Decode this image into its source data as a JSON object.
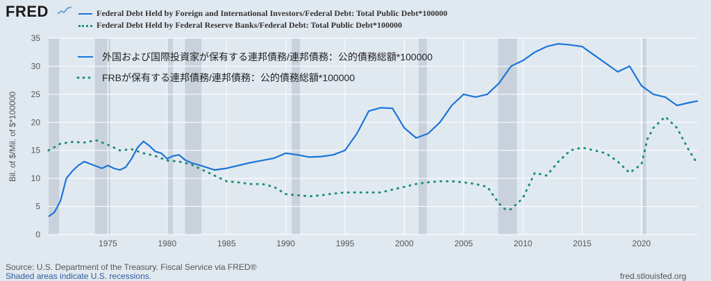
{
  "header": {
    "logo": "FRED",
    "legend": [
      {
        "label": "Federal Debt Held by Foreign and International Investors/Federal Debt: Total Public Debt*100000",
        "style": "solid"
      },
      {
        "label": "Federal Debt Held by Federal Reserve Banks/Federal Debt: Total Public Debt*100000",
        "style": "dotted"
      }
    ]
  },
  "chart_data": {
    "type": "line",
    "ylabel": "Bil. of $/Mil. of $*100000",
    "ylim": [
      0,
      35
    ],
    "xlim": [
      1970,
      2024.75
    ],
    "yticks": [
      0,
      5,
      10,
      15,
      20,
      25,
      30,
      35
    ],
    "xticks": [
      1975,
      1980,
      1985,
      1990,
      1995,
      2000,
      2005,
      2010,
      2015,
      2020
    ],
    "grid": true,
    "colors": {
      "foreign": "#1a74d8",
      "fed": "#1f8f76",
      "recession": "#c9d2dc"
    },
    "inner_legend": [
      {
        "label": "外国および国際投資家が保有する連邦債務/連邦債務：公的債務総額*100000",
        "style": "solid"
      },
      {
        "label": "FRBが保有する連邦債務/連邦債務：公的債務総額*100000",
        "style": "dotted"
      }
    ],
    "recessions": [
      [
        1970,
        1970.9
      ],
      [
        1973.9,
        1975.2
      ],
      [
        1980,
        1980.5
      ],
      [
        1981.5,
        1982.9
      ],
      [
        1990.5,
        1991.2
      ],
      [
        2001.2,
        2001.9
      ],
      [
        2007.9,
        2009.5
      ],
      [
        2020.1,
        2020.4
      ]
    ],
    "series": [
      {
        "name": "foreign",
        "style": "solid",
        "x": [
          1970,
          1970.5,
          1971,
          1971.5,
          1972,
          1972.5,
          1973,
          1973.5,
          1974,
          1974.5,
          1975,
          1975.5,
          1976,
          1976.5,
          1977,
          1977.5,
          1978,
          1978.5,
          1979,
          1979.5,
          1980,
          1980.5,
          1981,
          1981.5,
          1982,
          1983,
          1984,
          1985,
          1986,
          1987,
          1988,
          1989,
          1990,
          1991,
          1992,
          1993,
          1994,
          1995,
          1996,
          1997,
          1998,
          1999,
          2000,
          2001,
          2002,
          2003,
          2004,
          2005,
          2006,
          2007,
          2008,
          2009,
          2010,
          2011,
          2012,
          2013,
          2014,
          2015,
          2016,
          2017,
          2018,
          2019,
          2020,
          2021,
          2022,
          2023,
          2024,
          2024.75
        ],
        "values": [
          3.2,
          4.0,
          6.0,
          10.0,
          11.3,
          12.3,
          13.0,
          12.6,
          12.2,
          11.8,
          12.3,
          11.8,
          11.5,
          12.0,
          13.5,
          15.5,
          16.6,
          15.8,
          14.8,
          14.5,
          13.5,
          14.0,
          14.2,
          13.3,
          12.8,
          12.2,
          11.5,
          11.8,
          12.3,
          12.8,
          13.2,
          13.6,
          14.5,
          14.2,
          13.8,
          13.9,
          14.2,
          15.0,
          18.0,
          22.0,
          22.6,
          22.5,
          19.0,
          17.2,
          18.0,
          20.0,
          23.0,
          25.0,
          24.5,
          25.0,
          27.0,
          30.0,
          31.0,
          32.5,
          33.5,
          34.0,
          33.8,
          33.5,
          32.0,
          30.5,
          29.0,
          30.0,
          26.5,
          25.0,
          24.5,
          23.0,
          23.5,
          23.8
        ]
      },
      {
        "name": "fed",
        "style": "dotted",
        "x": [
          1970,
          1971,
          1972,
          1973,
          1974,
          1975,
          1976,
          1977,
          1978,
          1979,
          1980,
          1981,
          1982,
          1983,
          1984,
          1985,
          1986,
          1987,
          1988,
          1989,
          1990,
          1991,
          1992,
          1993,
          1994,
          1995,
          1996,
          1997,
          1998,
          1999,
          2000,
          2001,
          2002,
          2003,
          2004,
          2005,
          2006,
          2007,
          2008,
          2008.5,
          2009,
          2010,
          2011,
          2012,
          2013,
          2014,
          2015,
          2016,
          2017,
          2018,
          2019,
          2020,
          2020.5,
          2021,
          2022,
          2023,
          2024,
          2024.75
        ],
        "values": [
          15.0,
          16.2,
          16.5,
          16.4,
          16.8,
          16.0,
          15.0,
          15.2,
          14.5,
          14.0,
          13.2,
          13.0,
          12.5,
          11.5,
          10.5,
          9.5,
          9.3,
          9.0,
          9.0,
          8.5,
          7.2,
          7.0,
          6.8,
          7.0,
          7.3,
          7.5,
          7.5,
          7.5,
          7.5,
          8.0,
          8.5,
          9.0,
          9.3,
          9.5,
          9.5,
          9.3,
          9.0,
          8.5,
          5.5,
          4.5,
          4.5,
          6.5,
          11.0,
          10.5,
          13.0,
          15.0,
          15.5,
          15.0,
          14.5,
          13.0,
          11.0,
          12.5,
          17.0,
          19.0,
          21.0,
          19.0,
          15.0,
          12.5
        ]
      }
    ]
  },
  "footer": {
    "source": "Source: U.S. Department of the Treasury. Fiscal Service via FRED®",
    "shading_note": "Shaded areas indicate U.S. recessions.",
    "site": "fred.stlouisfed.org"
  }
}
